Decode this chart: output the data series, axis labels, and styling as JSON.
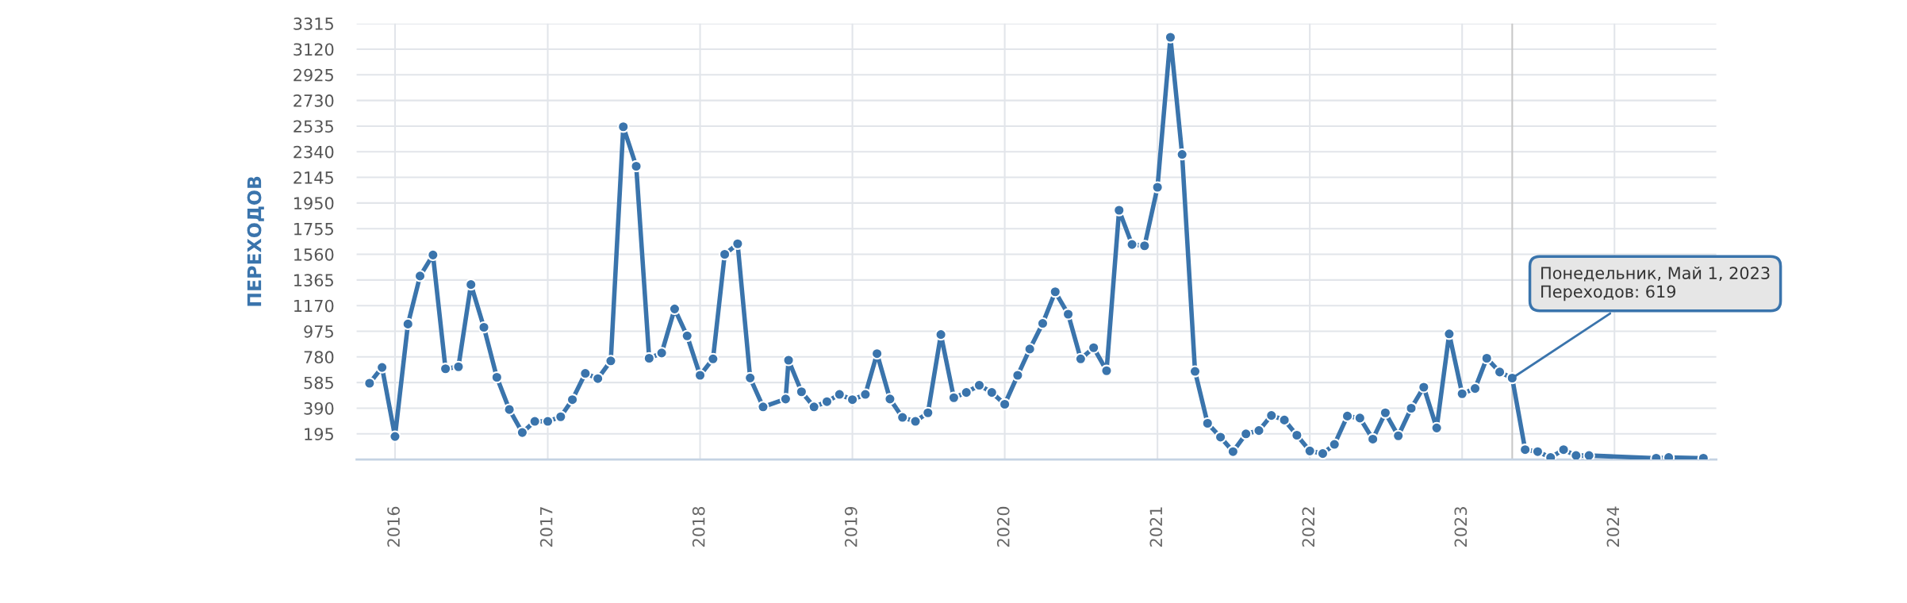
{
  "chart_data": {
    "type": "line",
    "ylabel": "ПЕРЕХОДОВ",
    "x": [
      "2015-11-01",
      "2015-12-01",
      "2016-01-01",
      "2016-02-01",
      "2016-03-01",
      "2016-04-01",
      "2016-05-01",
      "2016-06-01",
      "2016-07-01",
      "2016-08-01",
      "2016-09-01",
      "2016-10-01",
      "2016-11-01",
      "2016-12-01",
      "2017-01-01",
      "2017-02-01",
      "2017-03-01",
      "2017-04-01",
      "2017-05-01",
      "2017-06-01",
      "2017-07-01",
      "2017-08-01",
      "2017-09-01",
      "2017-10-01",
      "2017-11-01",
      "2017-12-01",
      "2018-01-01",
      "2018-02-01",
      "2018-03-01",
      "2018-04-01",
      "2018-05-01",
      "2018-06-01",
      "2018-07-25",
      "2018-08-01",
      "2018-09-01",
      "2018-10-01",
      "2018-11-01",
      "2018-12-01",
      "2019-01-01",
      "2019-02-01",
      "2019-03-01",
      "2019-04-01",
      "2019-05-01",
      "2019-06-01",
      "2019-07-01",
      "2019-08-01",
      "2019-09-01",
      "2019-10-01",
      "2019-11-01",
      "2019-12-01",
      "2020-01-01",
      "2020-02-01",
      "2020-03-01",
      "2020-04-01",
      "2020-05-01",
      "2020-06-01",
      "2020-07-01",
      "2020-08-01",
      "2020-09-01",
      "2020-10-01",
      "2020-11-01",
      "2020-12-01",
      "2021-01-01",
      "2021-02-01",
      "2021-03-01",
      "2021-04-01",
      "2021-05-01",
      "2021-06-01",
      "2021-07-01",
      "2021-08-01",
      "2021-09-01",
      "2021-10-01",
      "2021-11-01",
      "2021-12-01",
      "2022-01-01",
      "2022-02-01",
      "2022-03-01",
      "2022-04-01",
      "2022-05-01",
      "2022-06-01",
      "2022-07-01",
      "2022-08-01",
      "2022-09-01",
      "2022-10-01",
      "2022-11-01",
      "2022-12-01",
      "2023-01-01",
      "2023-02-01",
      "2023-03-01",
      "2023-04-01",
      "2023-05-01",
      "2023-06-01",
      "2023-07-01",
      "2023-08-01",
      "2023-09-01",
      "2023-10-01",
      "2023-11-01",
      "2024-04-10",
      "2024-05-10",
      "2024-08-01"
    ],
    "series": [
      {
        "color": "#3a74ac",
        "values": [
          580,
          700,
          175,
          1030,
          1395,
          1555,
          690,
          705,
          1330,
          1005,
          625,
          380,
          205,
          290,
          290,
          325,
          455,
          655,
          615,
          750,
          2530,
          2230,
          770,
          810,
          1145,
          940,
          640,
          765,
          1560,
          1640,
          620,
          400,
          460,
          755,
          515,
          400,
          440,
          495,
          455,
          495,
          805,
          460,
          320,
          290,
          355,
          950,
          470,
          510,
          565,
          510,
          420,
          640,
          840,
          1035,
          1275,
          1105,
          765,
          850,
          675,
          1895,
          1635,
          1625,
          2070,
          3210,
          2320,
          670,
          275,
          170,
          60,
          195,
          220,
          335,
          300,
          185,
          65,
          45,
          115,
          330,
          315,
          155,
          355,
          180,
          390,
          550,
          240,
          955,
          500,
          540,
          770,
          665,
          619,
          75,
          60,
          15,
          75,
          30,
          30,
          10,
          15,
          10
        ]
      }
    ],
    "xlim": [
      "2015-10-01",
      "2024-09-01"
    ],
    "xticks": [
      "2016",
      "2017",
      "2018",
      "2019",
      "2020",
      "2021",
      "2022",
      "2023",
      "2024"
    ],
    "ylim": [
      0,
      3315
    ],
    "yticks": [
      195,
      390,
      585,
      780,
      975,
      1170,
      1365,
      1560,
      1755,
      1950,
      2145,
      2340,
      2535,
      2730,
      2925,
      3120,
      3315
    ],
    "grid": true,
    "marker": "circle",
    "line_style": "solid",
    "ref_lines": [
      {
        "axis": "x",
        "value": "2023-05-01",
        "color": "#c8c8c8"
      }
    ],
    "annotations": [
      {
        "text": "Понедельник, Май 1, 2023\nПереходов: 619",
        "x": "2023-05-01",
        "y": 619
      }
    ]
  }
}
